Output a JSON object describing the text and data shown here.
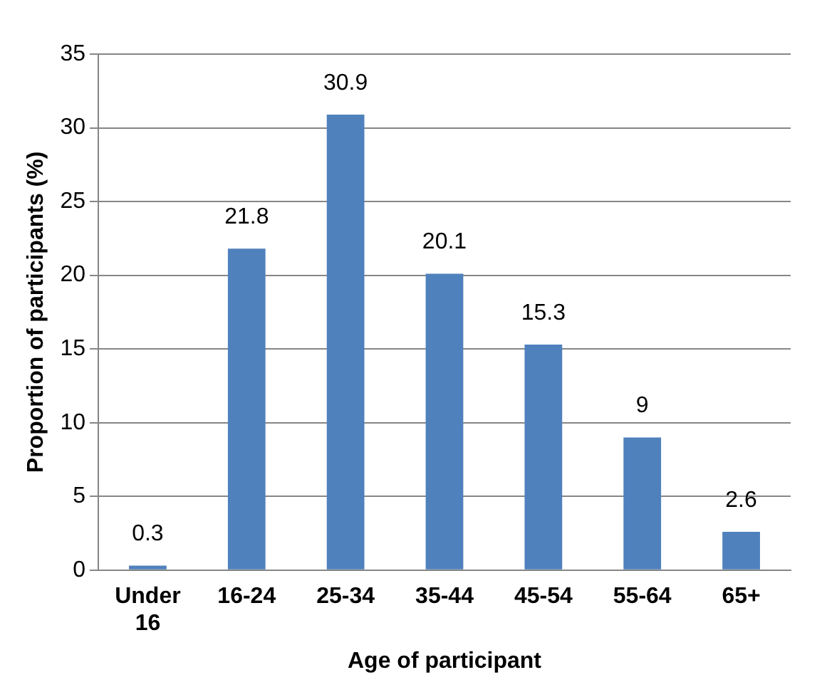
{
  "chart_data": {
    "type": "bar",
    "xlabel": "Age of participant",
    "ylabel": "Proportion of participants (%)",
    "categories": [
      "Under 16",
      "16-24",
      "25-34",
      "35-44",
      "45-54",
      "55-64",
      "65+"
    ],
    "values": [
      0.3,
      21.8,
      30.9,
      20.1,
      15.3,
      9,
      2.6
    ],
    "color": "#4f81bd",
    "ylim": [
      0,
      35
    ],
    "yticks": [
      0,
      5,
      10,
      15,
      20,
      25,
      30,
      35
    ],
    "grid": "y",
    "legend": false,
    "data_labels": true
  }
}
